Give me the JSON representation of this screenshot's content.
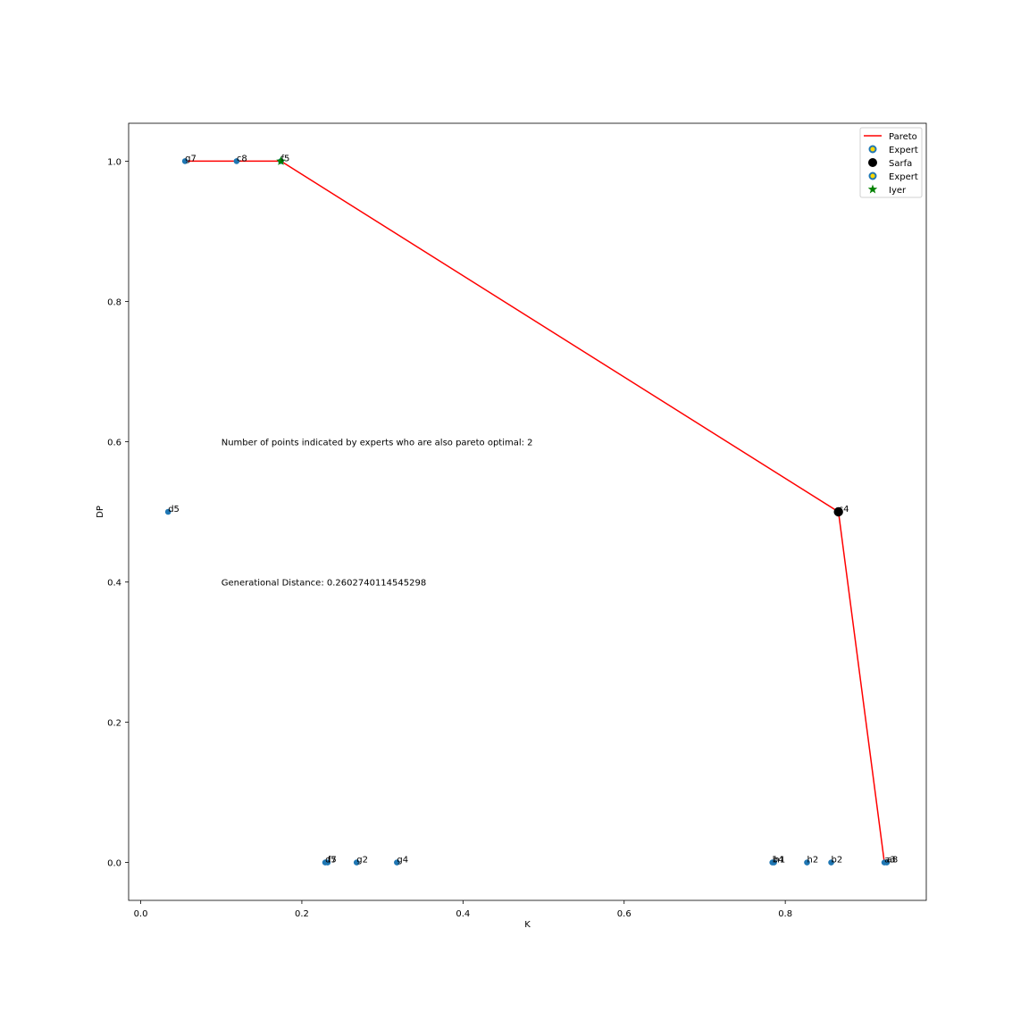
{
  "colors": {
    "points": "#1f77b4",
    "pareto": "#ff0000",
    "sarfa": "#000000",
    "iyer": "#008000",
    "expert_edge": "#1f77b4",
    "expert_face": "#ffd700"
  },
  "chart_data": {
    "type": "scatter",
    "xlabel": "K",
    "ylabel": "DP",
    "xlim": [
      -0.015,
      0.975
    ],
    "ylim": [
      -0.054,
      1.054
    ],
    "xticks": [
      "0.0",
      "0.2",
      "0.4",
      "0.6",
      "0.8"
    ],
    "yticks": [
      "0.0",
      "0.2",
      "0.4",
      "0.6",
      "0.8",
      "1.0"
    ],
    "grid": false,
    "legend": {
      "position": "top-right",
      "entries": [
        "Pareto",
        "Expert",
        "Sarfa",
        "Expert",
        "Iyer"
      ]
    },
    "points": [
      {
        "label": "g7",
        "x": 0.055,
        "y": 1.0
      },
      {
        "label": "c8",
        "x": 0.119,
        "y": 1.0
      },
      {
        "label": "f5",
        "x": 0.174,
        "y": 1.0
      },
      {
        "label": "d5",
        "x": 0.034,
        "y": 0.5
      },
      {
        "label": "c4",
        "x": 0.866,
        "y": 0.5
      },
      {
        "label": "d7",
        "x": 0.229,
        "y": 0.0
      },
      {
        "label": "f5",
        "x": 0.232,
        "y": 0.0
      },
      {
        "label": "g2",
        "x": 0.268,
        "y": 0.0
      },
      {
        "label": "g4",
        "x": 0.318,
        "y": 0.0
      },
      {
        "label": "b4",
        "x": 0.784,
        "y": 0.0
      },
      {
        "label": "h1",
        "x": 0.786,
        "y": 0.0
      },
      {
        "label": "h2",
        "x": 0.827,
        "y": 0.0
      },
      {
        "label": "b2",
        "x": 0.857,
        "y": 0.0
      },
      {
        "label": "a3",
        "x": 0.923,
        "y": 0.0
      },
      {
        "label": "a8",
        "x": 0.926,
        "y": 0.0
      }
    ],
    "pareto": [
      {
        "x": 0.055,
        "y": 1.0
      },
      {
        "x": 0.119,
        "y": 1.0
      },
      {
        "x": 0.174,
        "y": 1.0
      },
      {
        "x": 0.866,
        "y": 0.5
      },
      {
        "x": 0.923,
        "y": 0.0
      }
    ],
    "sarfa": {
      "x": 0.866,
      "y": 0.5
    },
    "iyer": {
      "x": 0.174,
      "y": 1.0
    },
    "annotations": [
      {
        "text": "Number of points indicated by experts who are also pareto optimal: 2",
        "x": 0.1,
        "y": 0.6
      },
      {
        "text": "Generational Distance: 0.2602740114545298",
        "x": 0.1,
        "y": 0.4
      }
    ]
  }
}
